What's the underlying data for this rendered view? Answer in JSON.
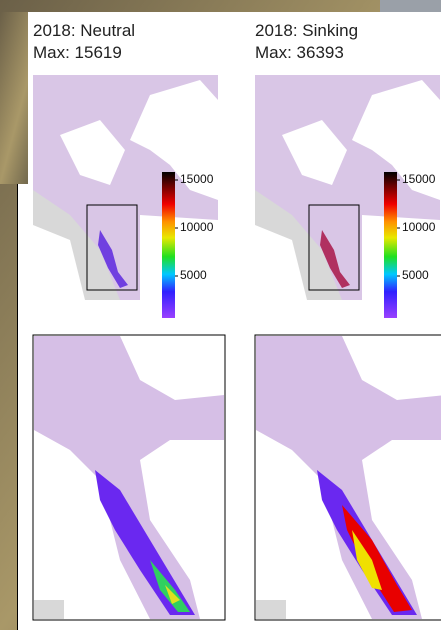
{
  "panels": [
    {
      "title": "2018: Neutral",
      "max": "Max: 15619",
      "colorbar_ticks": [
        15000,
        10000,
        5000
      ],
      "hotspot": "neutral"
    },
    {
      "title": "2018: Sinking",
      "max": "Max: 36393",
      "colorbar_ticks": [
        15000,
        10000,
        5000
      ],
      "hotspot": "sinking"
    }
  ]
}
